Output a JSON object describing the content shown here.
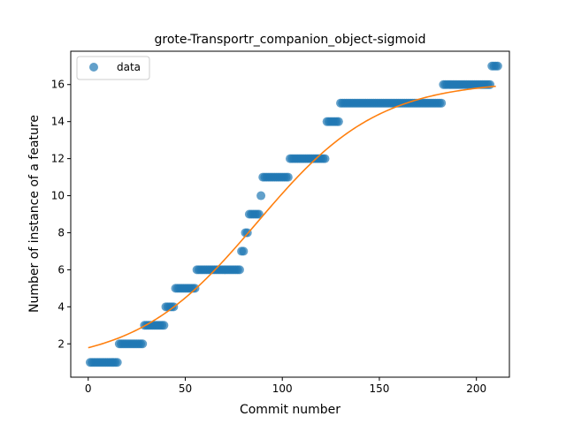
{
  "chart_data": {
    "type": "scatter",
    "title": "grote-Transportr_companion_object-sigmoid",
    "xlabel": "Commit number",
    "ylabel": "Number of instance of a feature",
    "xlim": [
      -9,
      217
    ],
    "ylim": [
      0.2,
      17.8
    ],
    "xticks": [
      0,
      50,
      100,
      150,
      200
    ],
    "yticks": [
      2,
      4,
      6,
      8,
      10,
      12,
      14,
      16
    ],
    "grid": false,
    "legend": {
      "position": "upper-left",
      "entries": [
        "data"
      ]
    },
    "colors": {
      "data": "#1f77b4",
      "fit": "#ff7f0e"
    },
    "series": [
      {
        "name": "data",
        "kind": "scatter",
        "runs": [
          {
            "y": 1,
            "x_from": 1,
            "x_to": 15
          },
          {
            "y": 2,
            "x_from": 16,
            "x_to": 28
          },
          {
            "y": 3,
            "x_from": 29,
            "x_to": 39
          },
          {
            "y": 4,
            "x_from": 40,
            "x_to": 44
          },
          {
            "y": 5,
            "x_from": 45,
            "x_to": 55
          },
          {
            "y": 6,
            "x_from": 56,
            "x_to": 78
          },
          {
            "y": 7,
            "x_from": 79,
            "x_to": 80
          },
          {
            "y": 8,
            "x_from": 81,
            "x_to": 82
          },
          {
            "y": 9,
            "x_from": 83,
            "x_to": 88
          },
          {
            "y": 10,
            "x_from": 89,
            "x_to": 89
          },
          {
            "y": 11,
            "x_from": 90,
            "x_to": 103
          },
          {
            "y": 12,
            "x_from": 104,
            "x_to": 122
          },
          {
            "y": 14,
            "x_from": 123,
            "x_to": 129
          },
          {
            "y": 15,
            "x_from": 130,
            "x_to": 182
          },
          {
            "y": 16,
            "x_from": 183,
            "x_to": 207
          },
          {
            "y": 17,
            "x_from": 208,
            "x_to": 211
          }
        ]
      },
      {
        "name": "",
        "kind": "line",
        "model": "sigmoid",
        "params": {
          "L": 15.3,
          "k": 0.032,
          "x0": 87,
          "c": 0.9
        },
        "x_range": [
          0,
          210
        ]
      }
    ]
  }
}
